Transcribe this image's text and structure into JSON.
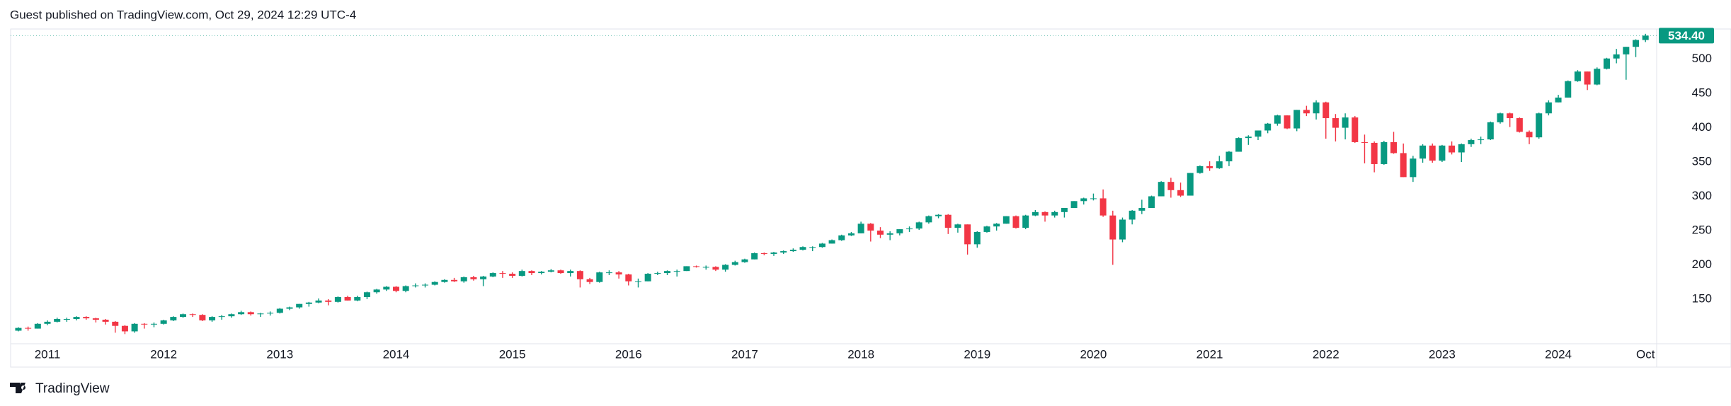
{
  "header": {
    "text": "Guest published on TradingView.com, Oct 29, 2024 12:29 UTC-4"
  },
  "footer": {
    "brand": "TradingView"
  },
  "chart_data": {
    "type": "candlestick",
    "up_color": "#089981",
    "down_color": "#f23645",
    "ylim": [
      88,
      543
    ],
    "yticks": [
      150,
      200,
      250,
      300,
      350,
      400,
      450,
      500
    ],
    "grid": false,
    "last_value_label": "534.40",
    "categories": [
      null,
      null,
      null,
      "2011",
      null,
      null,
      null,
      null,
      null,
      null,
      null,
      null,
      null,
      null,
      null,
      "2012",
      null,
      null,
      null,
      null,
      null,
      null,
      null,
      null,
      null,
      null,
      null,
      "2013",
      null,
      null,
      null,
      null,
      null,
      null,
      null,
      null,
      null,
      null,
      null,
      "2014",
      null,
      null,
      null,
      null,
      null,
      null,
      null,
      null,
      null,
      null,
      null,
      "2015",
      null,
      null,
      null,
      null,
      null,
      null,
      null,
      null,
      null,
      null,
      null,
      "2016",
      null,
      null,
      null,
      null,
      null,
      null,
      null,
      null,
      null,
      null,
      null,
      "2017",
      null,
      null,
      null,
      null,
      null,
      null,
      null,
      null,
      null,
      null,
      null,
      "2018",
      null,
      null,
      null,
      null,
      null,
      null,
      null,
      null,
      null,
      null,
      null,
      "2019",
      null,
      null,
      null,
      null,
      null,
      null,
      null,
      null,
      null,
      null,
      null,
      "2020",
      null,
      null,
      null,
      null,
      null,
      null,
      null,
      null,
      null,
      null,
      null,
      "2021",
      null,
      null,
      null,
      null,
      null,
      null,
      null,
      null,
      null,
      null,
      null,
      "2022",
      null,
      null,
      null,
      null,
      null,
      null,
      null,
      null,
      null,
      null,
      null,
      "2023",
      null,
      null,
      null,
      null,
      null,
      null,
      null,
      null,
      null,
      null,
      null,
      "2024",
      null,
      null,
      null,
      null,
      null,
      null,
      null,
      null,
      "Oct"
    ],
    "open": [
      104,
      108,
      107,
      114,
      117,
      121,
      121,
      124,
      122,
      120,
      117,
      111,
      103,
      114,
      113,
      114,
      119,
      124,
      128,
      127,
      119,
      124,
      125,
      128,
      131,
      128,
      129,
      130,
      136,
      138,
      143,
      145,
      148,
      146,
      153,
      148,
      153,
      160,
      164,
      168,
      162,
      169,
      170,
      171,
      175,
      178,
      176,
      182,
      179,
      183,
      188,
      187,
      184,
      191,
      188,
      190,
      192,
      188,
      191,
      179,
      175,
      189,
      189,
      186,
      176,
      176,
      187,
      188,
      191,
      191,
      198,
      197,
      197,
      193,
      200,
      204,
      208,
      217,
      216,
      218,
      220,
      222,
      226,
      226,
      231,
      236,
      243,
      246,
      260,
      250,
      244,
      246,
      252,
      253,
      262,
      271,
      273,
      254,
      259,
      230,
      248,
      256,
      260,
      271,
      254,
      272,
      277,
      272,
      277,
      283,
      293,
      297,
      297,
      272,
      237,
      266,
      279,
      283,
      300,
      321,
      309,
      301,
      334,
      344,
      341,
      351,
      365,
      385,
      387,
      396,
      406,
      418,
      399,
      426,
      421,
      437,
      414,
      400,
      415,
      379,
      378,
      347,
      379,
      363,
      328,
      355,
      374,
      352,
      374,
      364,
      376,
      382,
      383,
      408,
      421,
      414,
      394,
      386,
      421,
      437,
      444,
      468,
      482,
      463,
      486,
      501,
      507,
      518,
      528
    ],
    "high": [
      109,
      110,
      115,
      119,
      123,
      123,
      125,
      125,
      123,
      121,
      118,
      112,
      115,
      115,
      116,
      120,
      125,
      129,
      129,
      128,
      125,
      127,
      129,
      133,
      132,
      130,
      132,
      137,
      139,
      143,
      146,
      151,
      150,
      154,
      155,
      155,
      161,
      165,
      169,
      169,
      170,
      173,
      173,
      176,
      179,
      181,
      183,
      184,
      184,
      189,
      191,
      189,
      193,
      192,
      191,
      194,
      193,
      193,
      192,
      181,
      190,
      192,
      191,
      187,
      180,
      188,
      190,
      192,
      193,
      198,
      199,
      199,
      198,
      201,
      206,
      209,
      218,
      218,
      219,
      221,
      224,
      227,
      227,
      232,
      237,
      244,
      248,
      263,
      261,
      255,
      249,
      252,
      256,
      263,
      272,
      274,
      274,
      260,
      259,
      249,
      257,
      261,
      271,
      272,
      273,
      280,
      278,
      279,
      283,
      293,
      298,
      304,
      310,
      279,
      269,
      280,
      295,
      301,
      322,
      327,
      320,
      334,
      345,
      351,
      359,
      366,
      386,
      389,
      396,
      407,
      419,
      418,
      426,
      432,
      440,
      438,
      420,
      421,
      417,
      390,
      380,
      381,
      394,
      377,
      359,
      376,
      377,
      375,
      380,
      377,
      384,
      387,
      409,
      422,
      422,
      415,
      396,
      422,
      440,
      448,
      469,
      484,
      482,
      488,
      502,
      515,
      518,
      529,
      537
    ],
    "low": [
      103,
      104,
      107,
      112,
      116,
      117,
      119,
      120,
      116,
      113,
      101,
      99,
      101,
      107,
      109,
      113,
      118,
      123,
      124,
      118,
      117,
      120,
      123,
      127,
      126,
      124,
      126,
      129,
      134,
      136,
      139,
      144,
      141,
      145,
      148,
      147,
      150,
      158,
      162,
      160,
      160,
      167,
      167,
      170,
      174,
      175,
      174,
      177,
      169,
      182,
      181,
      181,
      183,
      185,
      186,
      189,
      187,
      183,
      167,
      172,
      174,
      185,
      180,
      170,
      167,
      176,
      185,
      185,
      183,
      191,
      196,
      193,
      191,
      190,
      199,
      203,
      208,
      214,
      213,
      216,
      219,
      221,
      220,
      225,
      231,
      235,
      242,
      246,
      234,
      239,
      236,
      243,
      248,
      251,
      260,
      268,
      245,
      247,
      215,
      225,
      247,
      250,
      260,
      253,
      252,
      271,
      263,
      269,
      269,
      283,
      288,
      294,
      270,
      200,
      233,
      259,
      274,
      283,
      300,
      298,
      299,
      303,
      333,
      337,
      340,
      344,
      365,
      375,
      382,
      392,
      403,
      398,
      395,
      417,
      412,
      384,
      380,
      383,
      378,
      348,
      335,
      346,
      362,
      328,
      321,
      349,
      349,
      350,
      361,
      350,
      372,
      376,
      382,
      406,
      401,
      393,
      376,
      384,
      418,
      437,
      444,
      467,
      455,
      462,
      485,
      494,
      470,
      503,
      525
    ],
    "close": [
      108,
      107,
      114,
      117,
      121,
      121,
      124,
      122,
      120,
      117,
      111,
      103,
      114,
      113,
      114,
      119,
      124,
      128,
      127,
      119,
      124,
      125,
      128,
      131,
      128,
      129,
      130,
      136,
      138,
      143,
      145,
      148,
      146,
      153,
      148,
      153,
      160,
      164,
      168,
      162,
      169,
      170,
      171,
      175,
      178,
      176,
      182,
      179,
      183,
      188,
      187,
      184,
      191,
      188,
      190,
      192,
      188,
      191,
      179,
      175,
      189,
      189,
      186,
      176,
      176,
      187,
      188,
      191,
      191,
      198,
      197,
      197,
      193,
      200,
      204,
      208,
      217,
      216,
      218,
      220,
      222,
      226,
      226,
      231,
      236,
      243,
      246,
      260,
      250,
      244,
      246,
      252,
      253,
      262,
      271,
      273,
      254,
      259,
      230,
      248,
      256,
      260,
      271,
      254,
      272,
      277,
      272,
      277,
      283,
      293,
      297,
      297,
      272,
      237,
      266,
      279,
      283,
      300,
      321,
      309,
      301,
      334,
      344,
      341,
      351,
      365,
      385,
      387,
      396,
      406,
      418,
      399,
      426,
      421,
      437,
      414,
      400,
      415,
      379,
      378,
      347,
      379,
      363,
      328,
      355,
      374,
      352,
      374,
      364,
      376,
      382,
      383,
      408,
      421,
      414,
      394,
      386,
      421,
      437,
      444,
      468,
      482,
      463,
      486,
      501,
      507,
      518,
      528,
      534.4
    ]
  }
}
